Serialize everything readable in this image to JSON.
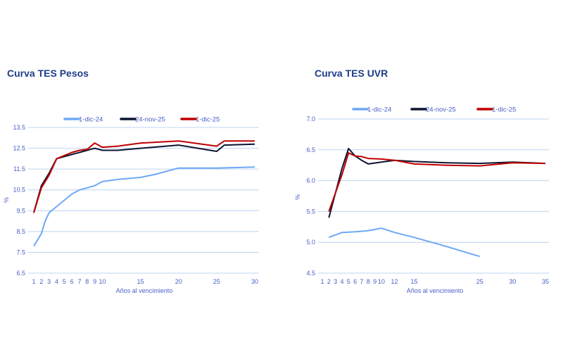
{
  "chart_data": [
    {
      "type": "line",
      "title": "Curva TES Pesos",
      "xlabel": "Años al vencimiento",
      "ylabel": "%",
      "xlim": [
        1,
        30
      ],
      "ylim": [
        6.5,
        13.5
      ],
      "xticks": [
        1,
        2,
        3,
        4,
        5,
        6,
        7,
        8,
        9,
        10,
        15,
        20,
        25,
        30
      ],
      "yticks": [
        "6.5",
        "7.5",
        "8.5",
        "9.5",
        "10.5",
        "11.5",
        "12.5",
        "13.5"
      ],
      "grid": true,
      "legend_position": "top",
      "series": [
        {
          "name": "1-dic-24",
          "color": "#6fa8f5",
          "x": [
            1,
            2,
            2.5,
            3,
            4,
            5,
            6,
            7,
            8,
            9,
            10,
            12,
            15,
            17,
            20,
            25,
            30
          ],
          "y": [
            7.8,
            8.4,
            9.0,
            9.4,
            9.7,
            10.0,
            10.3,
            10.5,
            10.6,
            10.7,
            10.9,
            11.0,
            11.1,
            11.25,
            11.55,
            11.55,
            11.6
          ]
        },
        {
          "name": "24-nov-25",
          "color": "#0d1530",
          "x": [
            1,
            2,
            3,
            4,
            5,
            6,
            7,
            8,
            9,
            10,
            12,
            15,
            20,
            25,
            26,
            30
          ],
          "y": [
            9.4,
            10.7,
            11.3,
            12.0,
            12.1,
            12.2,
            12.3,
            12.4,
            12.5,
            12.4,
            12.4,
            12.5,
            12.65,
            12.35,
            12.65,
            12.7
          ]
        },
        {
          "name": "1-dic-25",
          "color": "#c00000",
          "x": [
            1,
            2,
            3,
            4,
            5,
            6,
            7,
            8,
            9,
            10,
            12,
            15,
            20,
            25,
            26,
            30
          ],
          "y": [
            9.4,
            10.6,
            11.2,
            12.0,
            12.15,
            12.3,
            12.4,
            12.45,
            12.75,
            12.55,
            12.6,
            12.75,
            12.85,
            12.6,
            12.85,
            12.85
          ]
        }
      ]
    },
    {
      "type": "line",
      "title": "Curva TES UVR",
      "xlabel": "Años al vencimiento",
      "ylabel": "%",
      "xlim": [
        1,
        35
      ],
      "ylim": [
        4.5,
        7.0
      ],
      "xticks": [
        1,
        2,
        3,
        4,
        5,
        6,
        7,
        8,
        9,
        10,
        12,
        15,
        25,
        30,
        35
      ],
      "yticks": [
        "4.5",
        "5.0",
        "5.5",
        "6.0",
        "6.5",
        "7.0"
      ],
      "grid": true,
      "legend_position": "top",
      "series": [
        {
          "name": "1-dic-24",
          "color": "#6fa8f5",
          "x": [
            2,
            4,
            6,
            8,
            10,
            12,
            15,
            20,
            25
          ],
          "y": [
            5.08,
            5.16,
            5.17,
            5.19,
            5.23,
            5.16,
            5.08,
            4.93,
            4.77
          ]
        },
        {
          "name": "24-nov-25",
          "color": "#0d1530",
          "x": [
            2,
            4,
            5,
            6,
            7,
            8,
            10,
            12,
            15,
            20,
            25,
            30,
            35
          ],
          "y": [
            5.4,
            6.2,
            6.52,
            6.4,
            6.33,
            6.27,
            6.3,
            6.33,
            6.31,
            6.29,
            6.28,
            6.3,
            6.28
          ]
        },
        {
          "name": "1-dic-25",
          "color": "#c00000",
          "x": [
            2,
            4,
            5,
            6,
            7,
            8,
            10,
            12,
            15,
            20,
            25,
            30,
            35
          ],
          "y": [
            5.5,
            6.1,
            6.45,
            6.4,
            6.39,
            6.36,
            6.35,
            6.33,
            6.27,
            6.25,
            6.24,
            6.29,
            6.28
          ]
        }
      ]
    }
  ]
}
